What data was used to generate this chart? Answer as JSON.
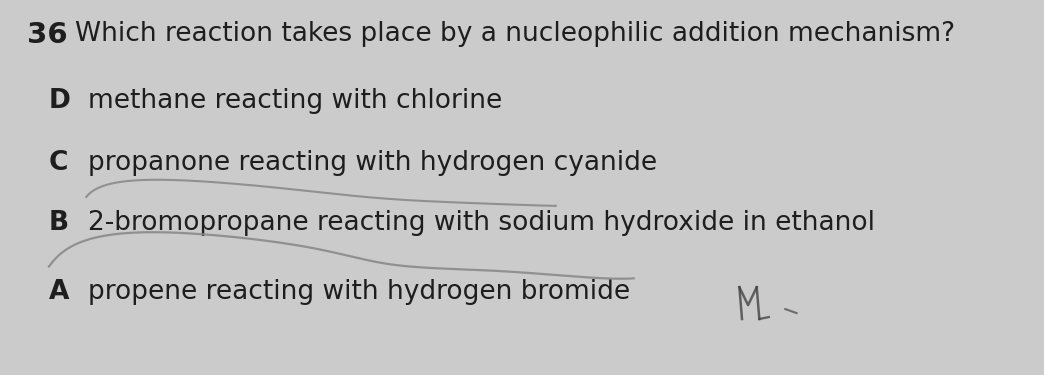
{
  "background_color": "#cbcbcb",
  "question_number": "36",
  "question_text": "Which reaction takes place by a nucleophilic addition mechanism?",
  "options": [
    {
      "label": "A",
      "text": "propene reacting with hydrogen bromide"
    },
    {
      "label": "B",
      "text": "2-bromopropane reacting with sodium hydroxide in ethanol"
    },
    {
      "label": "C",
      "text": "propanone reacting with hydrogen cyanide"
    },
    {
      "label": "D",
      "text": "methane reacting with chlorine"
    }
  ],
  "question_fontsize": 19,
  "option_label_fontsize": 19,
  "option_text_fontsize": 19,
  "question_number_fontsize": 21,
  "text_color": "#1e1e1e",
  "line_color": "#8a8a8a"
}
